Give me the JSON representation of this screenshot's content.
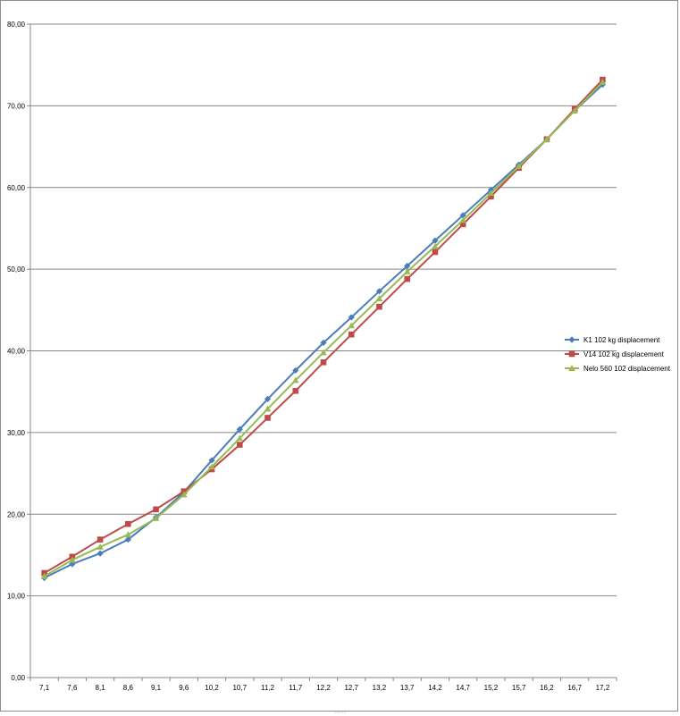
{
  "chart_data": {
    "type": "line",
    "title": "",
    "xlabel": "",
    "ylabel": "",
    "categories": [
      "7,1",
      "7,6",
      "8,1",
      "8,6",
      "9,1",
      "9,6",
      "10,2",
      "10,7",
      "11,2",
      "11,7",
      "12,2",
      "12,7",
      "13,2",
      "13,7",
      "14,2",
      "14,7",
      "15,2",
      "15,7",
      "16,2",
      "16,7",
      "17,2"
    ],
    "ylim": [
      0,
      80
    ],
    "yticks": [
      0,
      10,
      20,
      30,
      40,
      50,
      60,
      70,
      80
    ],
    "ytick_labels": [
      "0,00",
      "10,00",
      "20,00",
      "30,00",
      "40,00",
      "50,00",
      "60,00",
      "70,00",
      "80,00"
    ],
    "grid": "horizontal",
    "legend_position": "right",
    "series": [
      {
        "name": "K1 102 kg displacement",
        "color": "#4a7ebb",
        "marker": "diamond",
        "values": [
          12.2,
          13.9,
          15.2,
          16.9,
          19.6,
          22.7,
          26.6,
          30.4,
          34.1,
          37.6,
          41.0,
          44.1,
          47.3,
          50.4,
          53.5,
          56.6,
          59.7,
          62.8,
          65.9,
          69.4,
          72.6
        ]
      },
      {
        "name": "V14 102 kg displacement",
        "color": "#be4b48",
        "marker": "square",
        "values": [
          12.8,
          14.8,
          16.9,
          18.8,
          20.6,
          22.8,
          25.5,
          28.5,
          31.8,
          35.1,
          38.6,
          42.0,
          45.4,
          48.8,
          52.1,
          55.5,
          58.9,
          62.4,
          65.9,
          69.6,
          73.2
        ]
      },
      {
        "name": "Nelo 560 102 displacement",
        "color": "#98b954",
        "marker": "triangle",
        "values": [
          12.4,
          14.4,
          16.0,
          17.5,
          19.5,
          22.4,
          25.8,
          29.3,
          32.9,
          36.4,
          39.8,
          43.1,
          46.4,
          49.7,
          52.8,
          56.0,
          59.3,
          62.6,
          65.9,
          69.4,
          72.9
        ]
      }
    ]
  }
}
